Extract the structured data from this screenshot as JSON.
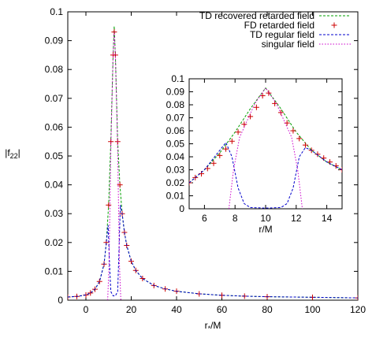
{
  "colors": {
    "recovered": "#00a000",
    "fd": "#cc0000",
    "regular": "#0000cc",
    "singular": "#cc00cc"
  },
  "legend": {
    "entries": [
      "TD recovered retarded field",
      "FD retarded field",
      "TD regular field",
      "singular field"
    ]
  },
  "chart_data": [
    {
      "type": "line",
      "title": "",
      "xlabel": "r*/M",
      "ylabel": "|f22|",
      "xlim": [
        -8,
        120
      ],
      "ylim": [
        0,
        0.1
      ],
      "xticks": [
        0,
        20,
        40,
        60,
        80,
        100,
        120
      ],
      "xtick_labels": [
        "0",
        "20",
        "40",
        "60",
        "80",
        "100",
        "120"
      ],
      "yticks": [
        0,
        0.01,
        0.02,
        0.03,
        0.04,
        0.05,
        0.06,
        0.07,
        0.08,
        0.09,
        0.1
      ],
      "ytick_labels": [
        "0",
        "0.01",
        "0.02",
        "0.03",
        "0.04",
        "0.05",
        "0.06",
        "0.07",
        "0.08",
        "0.09",
        "0.1"
      ],
      "legend_position": "top-right",
      "series": [
        {
          "name": "TD recovered retarded field",
          "style": "dashed",
          "x": [
            -8,
            -4,
            0,
            2,
            4,
            6,
            8,
            9,
            10,
            11,
            12,
            12.5,
            13,
            14,
            15,
            16,
            17,
            18,
            20,
            22,
            25,
            30,
            35,
            40,
            50,
            60,
            70,
            80,
            100,
            120
          ],
          "y": [
            0.0011,
            0.0013,
            0.0018,
            0.0025,
            0.0038,
            0.0065,
            0.0125,
            0.02,
            0.033,
            0.055,
            0.085,
            0.095,
            0.085,
            0.055,
            0.04,
            0.03,
            0.0235,
            0.019,
            0.0135,
            0.0103,
            0.0075,
            0.0051,
            0.0039,
            0.0031,
            0.0022,
            0.0017,
            0.0014,
            0.0012,
            0.001,
            0.0008
          ]
        },
        {
          "name": "FD retarded field",
          "style": "points",
          "x": [
            -8,
            -4,
            0,
            2,
            4,
            6,
            8,
            9,
            10,
            11,
            12,
            12.5,
            13,
            14,
            15,
            16,
            17,
            18,
            20,
            22,
            25,
            30,
            35,
            40,
            50,
            60,
            70,
            80,
            100,
            120
          ],
          "y": [
            0.0011,
            0.0013,
            0.0018,
            0.0025,
            0.0038,
            0.0065,
            0.0125,
            0.02,
            0.033,
            0.055,
            0.085,
            0.093,
            0.085,
            0.055,
            0.04,
            0.03,
            0.0235,
            0.019,
            0.0135,
            0.0103,
            0.0075,
            0.0051,
            0.0039,
            0.0031,
            0.0022,
            0.0017,
            0.0014,
            0.0012,
            0.001,
            0.0008
          ]
        },
        {
          "name": "TD regular field",
          "style": "dashed",
          "x": [
            -8,
            -4,
            0,
            2,
            4,
            6,
            8,
            9,
            9.8,
            10.3,
            11,
            12,
            13,
            14,
            14.7,
            15.2,
            16,
            17,
            18,
            20,
            22,
            25,
            30,
            35,
            40,
            50,
            60,
            70,
            80,
            100,
            120
          ],
          "y": [
            0.0011,
            0.0013,
            0.0018,
            0.0025,
            0.0038,
            0.0065,
            0.0125,
            0.02,
            0.026,
            0.015,
            0.003,
            0.0015,
            0.0015,
            0.003,
            0.02,
            0.033,
            0.03,
            0.0235,
            0.019,
            0.0135,
            0.0103,
            0.0075,
            0.0051,
            0.0039,
            0.0031,
            0.0022,
            0.0017,
            0.0014,
            0.0012,
            0.001,
            0.0008
          ]
        },
        {
          "name": "singular field",
          "style": "dotted",
          "x": [
            9.6,
            10.2,
            11,
            12,
            12.5,
            13,
            14,
            14.8,
            15.4
          ],
          "y": [
            0,
            0.012,
            0.052,
            0.085,
            0.093,
            0.085,
            0.052,
            0.012,
            0
          ]
        }
      ]
    },
    {
      "type": "line",
      "title": "",
      "xlabel": "r/M",
      "ylabel": "",
      "xlim": [
        5,
        15
      ],
      "ylim": [
        0,
        0.1
      ],
      "xticks": [
        6,
        8,
        10,
        12,
        14
      ],
      "xtick_labels": [
        "6",
        "8",
        "10",
        "12",
        "14"
      ],
      "yticks": [
        0,
        0.01,
        0.02,
        0.03,
        0.04,
        0.05,
        0.06,
        0.07,
        0.08,
        0.09,
        0.1
      ],
      "ytick_labels": [
        "0",
        "0.01",
        "0.02",
        "0.03",
        "0.04",
        "0.05",
        "0.06",
        "0.07",
        "0.08",
        "0.09",
        "0.1"
      ],
      "series": [
        {
          "name": "TD recovered retarded field",
          "style": "dashed",
          "x": [
            5,
            6,
            7,
            8,
            9,
            10,
            11,
            12,
            13,
            14,
            15
          ],
          "y": [
            0.02,
            0.03,
            0.043,
            0.059,
            0.077,
            0.093,
            0.077,
            0.059,
            0.045,
            0.036,
            0.03
          ]
        },
        {
          "name": "FD retarded field",
          "style": "points",
          "x": [
            5,
            5.4,
            5.8,
            6.2,
            6.6,
            7,
            7.4,
            7.8,
            8.2,
            8.6,
            9,
            9.4,
            9.8,
            10.2,
            10.6,
            11,
            11.4,
            11.8,
            12.2,
            12.6,
            13,
            13.4,
            13.8,
            14.2,
            14.6,
            15
          ],
          "y": [
            0.02,
            0.024,
            0.027,
            0.031,
            0.035,
            0.041,
            0.046,
            0.052,
            0.059,
            0.065,
            0.071,
            0.078,
            0.087,
            0.089,
            0.081,
            0.074,
            0.066,
            0.06,
            0.054,
            0.049,
            0.045,
            0.042,
            0.039,
            0.036,
            0.033,
            0.03
          ]
        },
        {
          "name": "TD regular field",
          "style": "dashed",
          "x": [
            5,
            6,
            7,
            7.4,
            7.8,
            8.2,
            8.6,
            9,
            10,
            11,
            11.4,
            11.8,
            12.2,
            12.6,
            13,
            14,
            15
          ],
          "y": [
            0.02,
            0.03,
            0.045,
            0.051,
            0.04,
            0.016,
            0.004,
            0.001,
            0.0005,
            0.001,
            0.004,
            0.016,
            0.04,
            0.047,
            0.045,
            0.036,
            0.03
          ]
        },
        {
          "name": "singular field",
          "style": "dotted",
          "x": [
            7.6,
            7.9,
            8.3,
            8.8,
            9.3,
            10,
            10.7,
            11.2,
            11.7,
            12.1,
            12.4
          ],
          "y": [
            0,
            0.03,
            0.055,
            0.068,
            0.081,
            0.093,
            0.081,
            0.068,
            0.055,
            0.03,
            0
          ]
        }
      ]
    }
  ]
}
